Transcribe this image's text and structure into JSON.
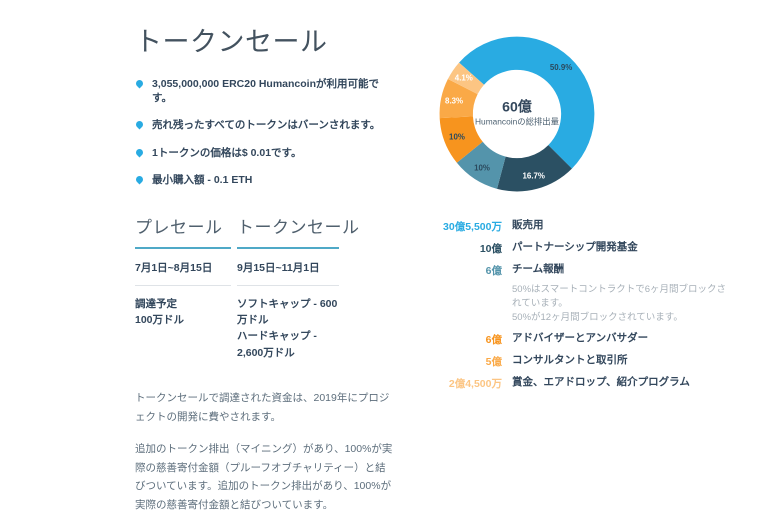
{
  "page": {
    "title": "トークンセール",
    "bullets": [
      "3,055,000,000 ERC20 Humancoinが利用可能です。",
      "売れ残ったすべてのトークンはバーンされます。",
      "1トークンの価格は$ 0.01です。",
      "最小購入額 - 0.1 ETH"
    ],
    "sale_columns": [
      {
        "heading": "プレセール",
        "dates": "7月1日~8月15日",
        "cap_lines": "調達予定\n100万ドル"
      },
      {
        "heading": "トークンセール",
        "dates": "9月15日~11月1日",
        "cap_lines": "ソフトキャップ - 600万ドル\nハードキャップ - 2,600万ドル"
      }
    ],
    "paragraphs": [
      "トークンセールで調達された資金は、2019年にプロジェクトの開発に費やされます。",
      "追加のトークン排出（マイニング）があり、100%が実際の慈善寄付金額（プルーフオブチャリティー）と結びついています。追加のトークン排出があり、100%が実際の慈善寄付金額と結びついています。"
    ]
  },
  "chart_data": {
    "type": "pie",
    "subtype": "donut",
    "center_value": "60億",
    "center_caption": "Humancoinの総排出量",
    "start_angle_deg": -48.4,
    "inner_radius_ratio": 0.57,
    "legend_position": "bottom",
    "segments": [
      {
        "label": "販売用",
        "amount": "30億5,500万",
        "percent": 50.9,
        "percent_label": "50.9%",
        "color": "#29abe2",
        "percent_label_color": "#2b4a5e"
      },
      {
        "label": "パートナーシップ開発基金",
        "amount": "10億",
        "percent": 16.7,
        "percent_label": "16.7%",
        "color": "#2b5063",
        "percent_label_color": "#ffffff"
      },
      {
        "label": "チーム報酬",
        "amount": "6億",
        "percent": 10.0,
        "percent_label": "10%",
        "color": "#5494ab",
        "percent_label_color": "#2b4a5e",
        "notes": [
          "50%はスマートコントラクトで6ヶ月間ブロックされています。",
          "50%が12ヶ月間ブロックされています。"
        ]
      },
      {
        "label": "アドバイザーとアンバサダー",
        "amount": "6億",
        "percent": 10.0,
        "percent_label": "10%",
        "color": "#f7941e",
        "percent_label_color": "#2b4a5e"
      },
      {
        "label": "コンサルタントと取引所",
        "amount": "5億",
        "percent": 8.3,
        "percent_label": "8.3%",
        "color": "#faa947",
        "percent_label_color": "#ffffff"
      },
      {
        "label": "賞金、エアドロップ、紹介プログラム",
        "amount": "2億4,500万",
        "percent": 4.1,
        "percent_label": "4.1%",
        "color": "#fcc583",
        "percent_label_color": "#ffffff"
      }
    ]
  }
}
